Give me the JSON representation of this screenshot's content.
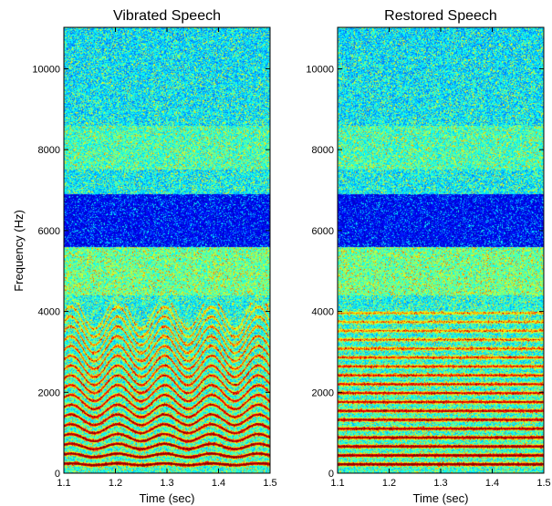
{
  "chart_data": [
    {
      "type": "heatmap",
      "title": "Vibrated Speech",
      "xlabel": "Time (sec)",
      "ylabel": "Frequency (Hz)",
      "xlim": [
        1.1,
        1.5
      ],
      "ylim": [
        0,
        11025
      ],
      "x_ticks": [
        "1.1",
        "1.2",
        "1.3",
        "1.4",
        "1.5"
      ],
      "y_ticks": [
        "0",
        "2000",
        "4000",
        "6000",
        "8000",
        "10000"
      ],
      "colormap": [
        "#00008f",
        "#0000ff",
        "#00ffff",
        "#ffff00",
        "#ff0000",
        "#800000"
      ],
      "harmonics_hz": [
        220,
        440,
        660,
        880,
        1100,
        1320,
        1540,
        1760,
        1980,
        2200,
        2420,
        2640,
        2860,
        3080,
        3300,
        3520,
        3740,
        3960
      ],
      "vibrato": {
        "rate_hz": 11,
        "depth": 0.1
      },
      "low_energy_band_hz": [
        5600,
        6900
      ]
    },
    {
      "type": "heatmap",
      "title": "Restored Speech",
      "xlabel": "Time (sec)",
      "ylabel": "",
      "xlim": [
        1.1,
        1.5
      ],
      "ylim": [
        0,
        11025
      ],
      "x_ticks": [
        "1.1",
        "1.2",
        "1.3",
        "1.4",
        "1.5"
      ],
      "y_ticks": [
        "0",
        "2000",
        "4000",
        "6000",
        "8000",
        "10000"
      ],
      "colormap": [
        "#00008f",
        "#0000ff",
        "#00ffff",
        "#ffff00",
        "#ff0000",
        "#800000"
      ],
      "harmonics_hz": [
        220,
        440,
        660,
        880,
        1100,
        1320,
        1540,
        1760,
        1980,
        2200,
        2420,
        2640,
        2860,
        3080,
        3300,
        3520,
        3740,
        3960
      ],
      "vibrato": {
        "rate_hz": 0,
        "depth": 0
      },
      "low_energy_band_hz": [
        5600,
        6900
      ]
    }
  ]
}
